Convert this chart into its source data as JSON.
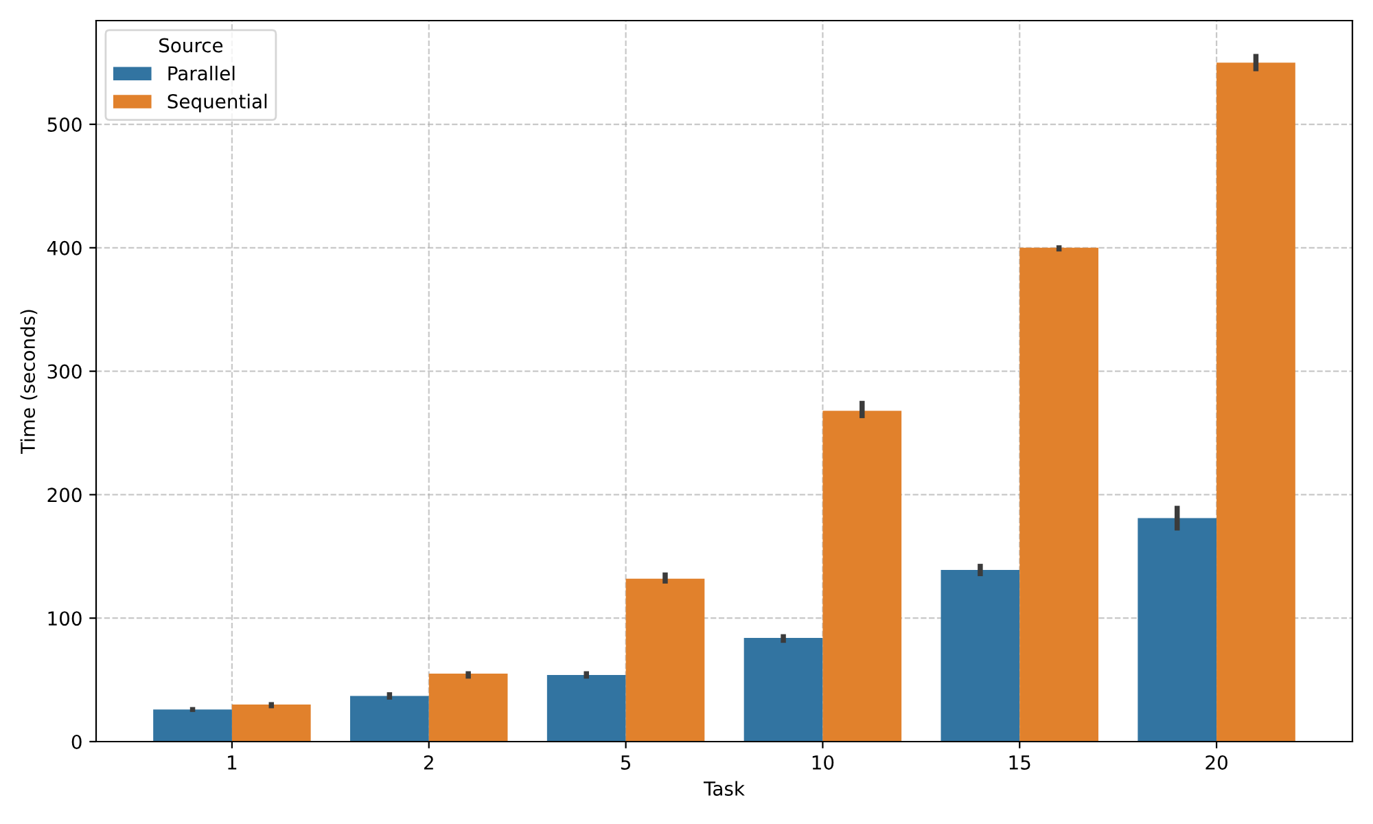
{
  "chart_data": {
    "type": "bar",
    "xlabel": "Task",
    "ylabel": "Time (seconds)",
    "legend_title": "Source",
    "categories": [
      "1",
      "2",
      "5",
      "10",
      "15",
      "20"
    ],
    "series": [
      {
        "name": "Parallel",
        "color": "#3274a1",
        "values": [
          26,
          37,
          54,
          84,
          139,
          181
        ],
        "errors": [
          [
            24,
            28
          ],
          [
            34,
            40
          ],
          [
            51,
            57
          ],
          [
            80,
            87
          ],
          [
            134,
            144
          ],
          [
            171,
            191
          ]
        ]
      },
      {
        "name": "Sequential",
        "color": "#e1812c",
        "values": [
          30,
          55,
          132,
          268,
          400,
          550
        ],
        "errors": [
          [
            27,
            32
          ],
          [
            51,
            57
          ],
          [
            128,
            137
          ],
          [
            262,
            276
          ],
          [
            397,
            402
          ],
          [
            543,
            557
          ]
        ]
      }
    ],
    "ylim": [
      0,
      584
    ],
    "yticks": [
      0,
      100,
      200,
      300,
      400,
      500
    ],
    "grid": true,
    "line_style": "dashed",
    "legend": "top left"
  }
}
